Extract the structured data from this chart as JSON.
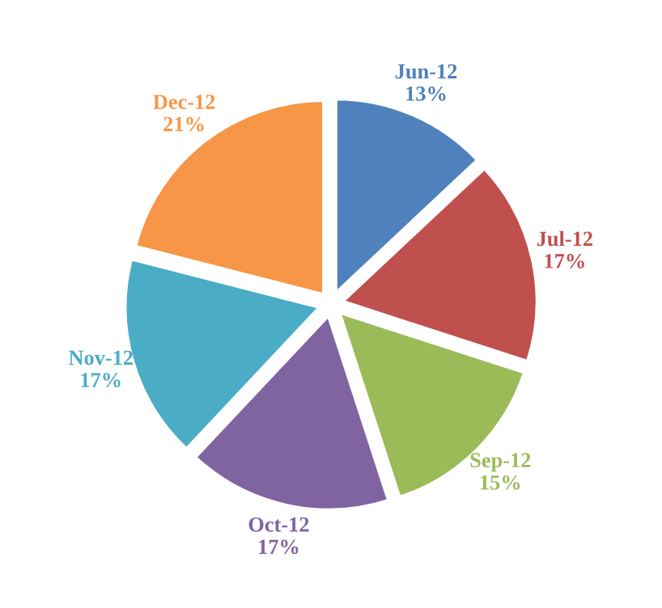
{
  "chart_data": {
    "type": "pie",
    "categories": [
      "Jun-12",
      "Jul-12",
      "Sep-12",
      "Oct-12",
      "Nov-12",
      "Dec-12"
    ],
    "values": [
      13,
      17,
      15,
      17,
      17,
      21
    ],
    "value_labels": [
      "13%",
      "17%",
      "15%",
      "17%",
      "17%",
      "21%"
    ],
    "colors": [
      "#4f81bd",
      "#c0504d",
      "#9bbb59",
      "#8064a2",
      "#4bacc6",
      "#f79646"
    ],
    "legend": false
  }
}
